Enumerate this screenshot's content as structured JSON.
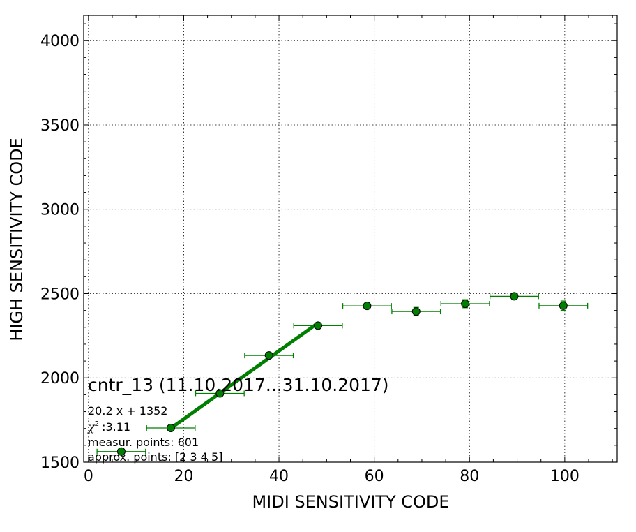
{
  "chart_data": {
    "type": "scatter",
    "xlabel": "MIDI SENSITIVITY CODE",
    "ylabel": "HIGH SENSITIVITY CODE",
    "xlim": [
      -1,
      111
    ],
    "ylim": [
      1500,
      4150
    ],
    "x_ticks": [
      0,
      20,
      40,
      60,
      80,
      100
    ],
    "y_ticks": [
      1500,
      2000,
      2500,
      3000,
      3500,
      4000
    ],
    "grid": true,
    "colors": {
      "points": "#007f00",
      "fit": "#007f00",
      "errorbar": "#007f00"
    },
    "points": [
      {
        "x": 6.9,
        "y": 1563,
        "xerr": 5.1,
        "yerr": 10
      },
      {
        "x": 17.3,
        "y": 1703,
        "xerr": 5.1,
        "yerr": 10
      },
      {
        "x": 27.6,
        "y": 1908,
        "xerr": 5.1,
        "yerr": 10
      },
      {
        "x": 37.9,
        "y": 2133,
        "xerr": 5.1,
        "yerr": 12
      },
      {
        "x": 48.2,
        "y": 2310,
        "xerr": 5.1,
        "yerr": 14
      },
      {
        "x": 58.5,
        "y": 2427,
        "xerr": 5.1,
        "yerr": 14
      },
      {
        "x": 68.8,
        "y": 2394,
        "xerr": 5.1,
        "yerr": 24
      },
      {
        "x": 79.1,
        "y": 2440,
        "xerr": 5.1,
        "yerr": 24
      },
      {
        "x": 89.4,
        "y": 2484,
        "xerr": 5.1,
        "yerr": 18
      },
      {
        "x": 99.7,
        "y": 2428,
        "xerr": 5.1,
        "yerr": 28
      }
    ],
    "fit": {
      "slope": 20.2,
      "intercept": 1352,
      "x_range": [
        17.3,
        48.2
      ]
    },
    "annotation": {
      "title": "cntr_13 (11.10.2017...31.10.2017)",
      "equation": "20.2 x + 1352",
      "chi2_symbol": "χ",
      "chi2_value": ":3.11",
      "measur_points": "measur. points: 601",
      "approx_points": "approx. points: [2 3 4 5]"
    }
  }
}
